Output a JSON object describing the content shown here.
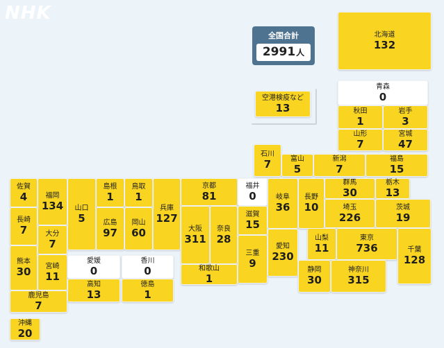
{
  "brand": "NHK",
  "total": {
    "label": "全国合計",
    "value": "2991",
    "unit": "人"
  },
  "prefectures": [
    {
      "key": "hokkaido",
      "name": "北海道",
      "value": "132"
    },
    {
      "key": "aomori",
      "name": "青森",
      "value": "0"
    },
    {
      "key": "akita",
      "name": "秋田",
      "value": "1"
    },
    {
      "key": "iwate",
      "name": "岩手",
      "value": "3"
    },
    {
      "key": "yamagata",
      "name": "山形",
      "value": "7"
    },
    {
      "key": "miyagi",
      "name": "宮城",
      "value": "47"
    },
    {
      "key": "airport",
      "name": "空港検疫など",
      "value": "13"
    },
    {
      "key": "ishikawa",
      "name": "石川",
      "value": "7"
    },
    {
      "key": "toyama",
      "name": "富山",
      "value": "5"
    },
    {
      "key": "niigata",
      "name": "新潟",
      "value": "7"
    },
    {
      "key": "fukushima",
      "name": "福島",
      "value": "15"
    },
    {
      "key": "saga",
      "name": "佐賀",
      "value": "4"
    },
    {
      "key": "fukuoka",
      "name": "福岡",
      "value": "134"
    },
    {
      "key": "yamaguchi",
      "name": "山口",
      "value": "5"
    },
    {
      "key": "shimane",
      "name": "島根",
      "value": "1"
    },
    {
      "key": "tottori",
      "name": "鳥取",
      "value": "1"
    },
    {
      "key": "hyogo",
      "name": "兵庫",
      "value": "127"
    },
    {
      "key": "kyoto",
      "name": "京都",
      "value": "81"
    },
    {
      "key": "fukui",
      "name": "福井",
      "value": "0"
    },
    {
      "key": "gifu",
      "name": "岐阜",
      "value": "36"
    },
    {
      "key": "nagano",
      "name": "長野",
      "value": "10"
    },
    {
      "key": "gunma",
      "name": "群馬",
      "value": "30"
    },
    {
      "key": "tochigi",
      "name": "栃木",
      "value": "13"
    },
    {
      "key": "nagasaki",
      "name": "長崎",
      "value": "7"
    },
    {
      "key": "oita",
      "name": "大分",
      "value": "7"
    },
    {
      "key": "hiroshima",
      "name": "広島",
      "value": "97"
    },
    {
      "key": "okayama",
      "name": "岡山",
      "value": "60"
    },
    {
      "key": "osaka",
      "name": "大阪",
      "value": "311"
    },
    {
      "key": "nara",
      "name": "奈良",
      "value": "28"
    },
    {
      "key": "shiga",
      "name": "滋賀",
      "value": "15"
    },
    {
      "key": "saitama",
      "name": "埼玉",
      "value": "226"
    },
    {
      "key": "ibaraki",
      "name": "茨城",
      "value": "19"
    },
    {
      "key": "kumamoto",
      "name": "熊本",
      "value": "30"
    },
    {
      "key": "miyazaki",
      "name": "宮崎",
      "value": "11"
    },
    {
      "key": "ehime",
      "name": "愛媛",
      "value": "0"
    },
    {
      "key": "kagawa",
      "name": "香川",
      "value": "0"
    },
    {
      "key": "mie",
      "name": "三重",
      "value": "9"
    },
    {
      "key": "aichi",
      "name": "愛知",
      "value": "230"
    },
    {
      "key": "yamanashi",
      "name": "山梨",
      "value": "11"
    },
    {
      "key": "tokyo",
      "name": "東京",
      "value": "736"
    },
    {
      "key": "chiba",
      "name": "千葉",
      "value": "128"
    },
    {
      "key": "kochi",
      "name": "高知",
      "value": "13"
    },
    {
      "key": "tokushima",
      "name": "徳島",
      "value": "1"
    },
    {
      "key": "wakayama",
      "name": "和歌山",
      "value": "1"
    },
    {
      "key": "shizuoka",
      "name": "静岡",
      "value": "30"
    },
    {
      "key": "kanagawa",
      "name": "神奈川",
      "value": "315"
    },
    {
      "key": "kagoshima",
      "name": "鹿児島",
      "value": "7"
    },
    {
      "key": "okinawa",
      "name": "沖縄",
      "value": "20"
    }
  ],
  "colors": {
    "background": "#ecf4fa",
    "tile": "#f9d521",
    "zero_tile": "#ffffff",
    "total_box": "#4d7390"
  }
}
